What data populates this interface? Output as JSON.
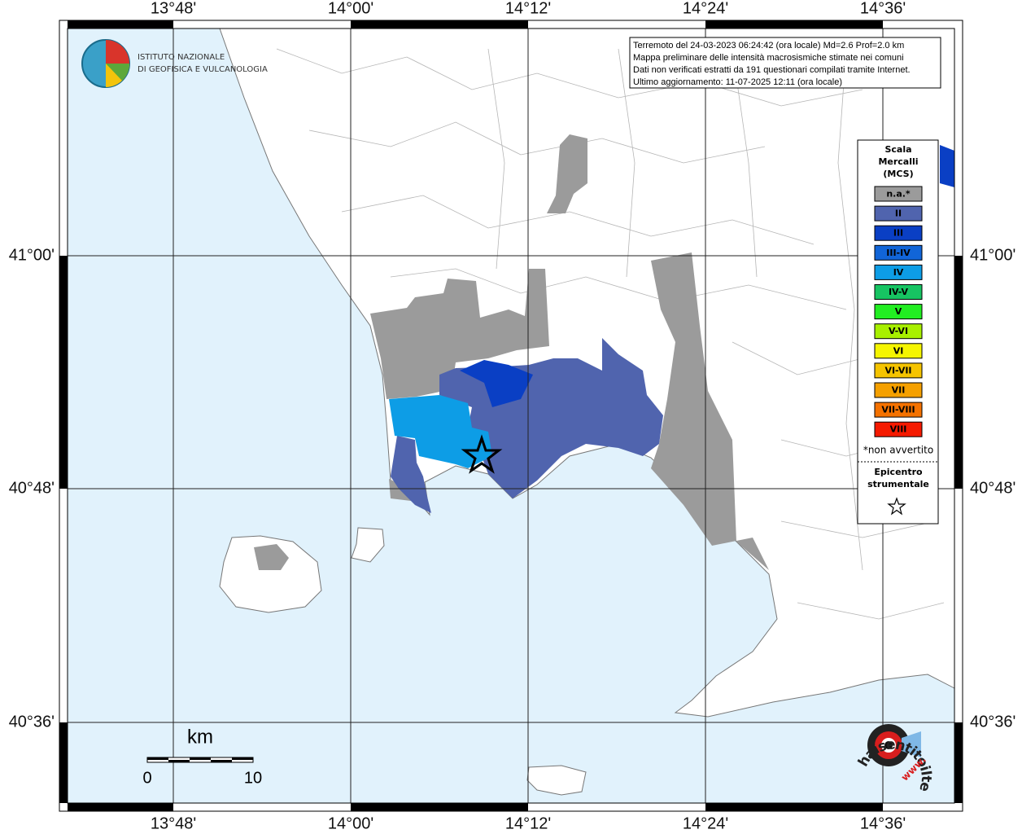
{
  "axes": {
    "top_labels": [
      "13°48'",
      "14°00'",
      "14°12'",
      "14°24'",
      "14°36'"
    ],
    "bottom_labels": [
      "13°48'",
      "14°00'",
      "14°12'",
      "14°24'",
      "14°36'"
    ],
    "left_labels": [
      "41°00'",
      "40°48'",
      "40°36'"
    ],
    "right_labels": [
      "41°00'",
      "40°48'",
      "40°36'"
    ]
  },
  "logo": {
    "line1": "ISTITUTO NAZIONALE",
    "line2": "DI GEOFISICA E VULCANOLOGIA"
  },
  "info": [
    "Terremoto del 24-03-2023 06:24:42 (ora locale) Md=2.6 Prof=2.0 km",
    "Mappa preliminare delle intensità macrosismiche stimate nei comuni",
    "Dati non verificati estratti da 191 questionari compilati tramite Internet.",
    "Ultimo aggiornamento: 11-07-2025 12:11 (ora locale)"
  ],
  "legend": {
    "title": [
      "Scala",
      "Mercalli",
      "(MCS)"
    ],
    "items": [
      {
        "label": "n.a.*",
        "color": "#9b9b9b"
      },
      {
        "label": "II",
        "color": "#5064ae"
      },
      {
        "label": "III",
        "color": "#0a3fc4"
      },
      {
        "label": "III-IV",
        "color": "#1165d8"
      },
      {
        "label": "IV",
        "color": "#0d9de6"
      },
      {
        "label": "IV-V",
        "color": "#17c462"
      },
      {
        "label": "V",
        "color": "#22ee22"
      },
      {
        "label": "V-VI",
        "color": "#a8f000"
      },
      {
        "label": "VI",
        "color": "#f5f500"
      },
      {
        "label": "VI-VII",
        "color": "#f5c400"
      },
      {
        "label": "VII",
        "color": "#f5a000"
      },
      {
        "label": "VII-VIII",
        "color": "#f57200"
      },
      {
        "label": "VIII",
        "color": "#f51a00"
      }
    ],
    "note": "*non avvertito",
    "epicenter": [
      "Epicentro",
      "strumentale"
    ]
  },
  "scale_bar": {
    "unit": "km",
    "labels": [
      "0",
      "10"
    ]
  },
  "watermark": {
    "site": "haisentitoilterremoto.it",
    "prefix": "www."
  }
}
